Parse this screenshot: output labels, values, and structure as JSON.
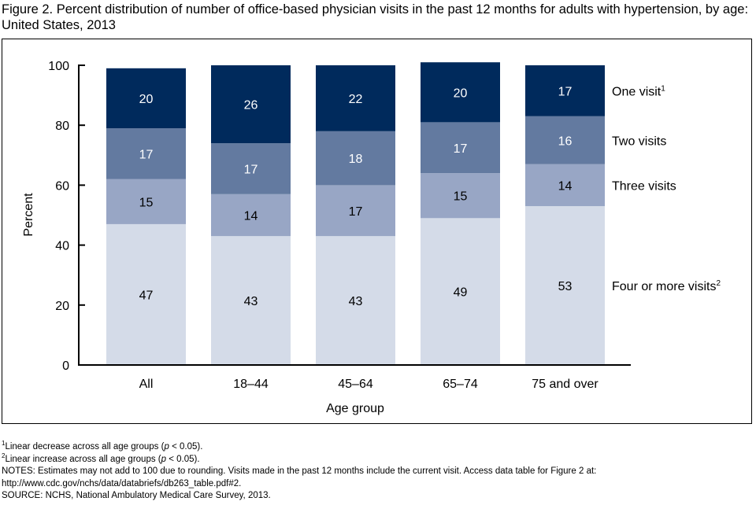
{
  "figure": {
    "title": "Figure 2. Percent distribution of number of office-based physician visits in the past 12 months for adults with hypertension, by age: United States, 2013"
  },
  "chart_data": {
    "type": "bar",
    "stacked": true,
    "title": "Percent distribution of number of office-based physician visits in the past 12 months for adults with hypertension, by age: United States, 2013",
    "xlabel": "Age group",
    "ylabel": "Percent",
    "ylim": [
      0,
      100
    ],
    "yticks": [
      0,
      20,
      40,
      60,
      80,
      100
    ],
    "categories": [
      "All",
      "18–44",
      "45–64",
      "65–74",
      "75 and over"
    ],
    "series": [
      {
        "name": "Four or more visits",
        "footnote": "2",
        "color": "#d4dbe8",
        "label_color": "#000000",
        "values": [
          47,
          43,
          43,
          49,
          53
        ]
      },
      {
        "name": "Three visits",
        "footnote": "",
        "color": "#98a6c5",
        "label_color": "#000000",
        "values": [
          15,
          14,
          17,
          15,
          14
        ]
      },
      {
        "name": "Two visits",
        "footnote": "",
        "color": "#637aa0",
        "label_color": "#ffffff",
        "values": [
          17,
          17,
          18,
          17,
          16
        ]
      },
      {
        "name": "One visit",
        "footnote": "1",
        "color": "#002a5c",
        "label_color": "#ffffff",
        "values": [
          20,
          26,
          22,
          20,
          17
        ]
      }
    ],
    "legend_placement": "right",
    "grid": false
  },
  "notes": {
    "fn1_mark": "1",
    "fn1_a": "Linear decrease across all age groups (",
    "fn1_p": "p",
    "fn1_b": " < 0.05).",
    "fn2_mark": "2",
    "fn2_a": "Linear increase across all age groups (",
    "fn2_p": "p",
    "fn2_b": " < 0.05).",
    "notes_line": "NOTES: Estimates may not add to 100 due to rounding. Visits made in the past 12 months include the current visit. Access data table for Figure 2 at:",
    "url_line": "http://www.cdc.gov/nchs/data/databriefs/db263_table.pdf#2.",
    "source_line": "SOURCE: NCHS, National Ambulatory Medical Care Survey, 2013."
  }
}
